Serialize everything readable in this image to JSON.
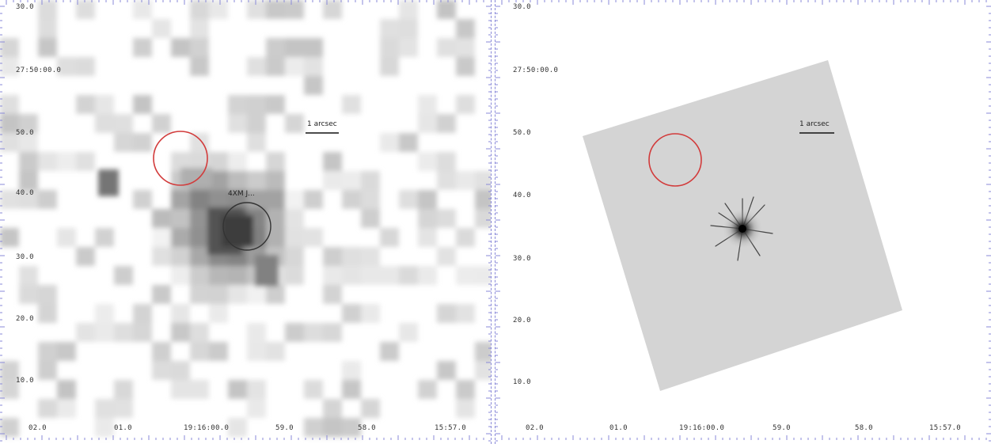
{
  "colors": {
    "source_circle": "#d23b3b",
    "frame_ticks": "#8a8ad8",
    "counterpart_circle": "#333333"
  },
  "left_panel": {
    "y_ticks": [
      "30.0",
      "27:50:00.0",
      "50.0",
      "40.0",
      "30.0",
      "20.0",
      "10.0"
    ],
    "x_ticks": [
      "02.0",
      "01.0",
      "19:16:00.0",
      "59.0",
      "58.0",
      "15:57.0"
    ],
    "scale_label": "1 arcsec",
    "source_label": "4XM J..."
  },
  "right_panel": {
    "y_ticks": [
      "30.0",
      "27:50:00.0",
      "50.0",
      "40.0",
      "30.0",
      "20.0",
      "10.0"
    ],
    "x_ticks": [
      "02.0",
      "01.0",
      "19:16:00.0",
      "59.0",
      "58.0",
      "15:57.0"
    ],
    "scale_label": "1 arcsec"
  }
}
